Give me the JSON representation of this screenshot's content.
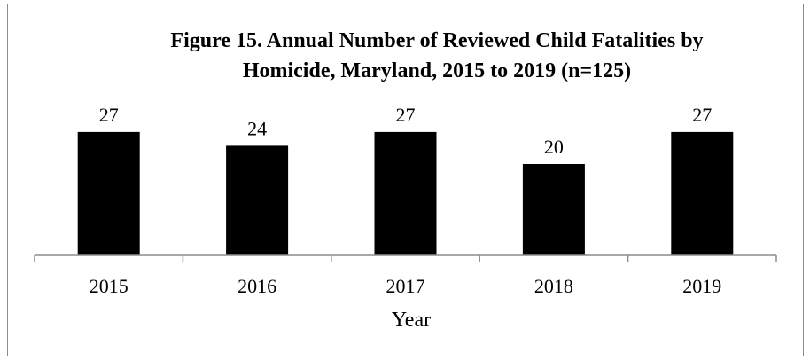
{
  "chart_data": {
    "type": "bar",
    "title_lines": [
      "Figure 15. Annual Number of Reviewed Child Fatalities by",
      "Homicide, Maryland, 2015 to 2019 (n=125)"
    ],
    "categories": [
      "2015",
      "2016",
      "2017",
      "2018",
      "2019"
    ],
    "values": [
      27,
      24,
      27,
      20,
      27
    ],
    "data_labels": [
      "27",
      "24",
      "27",
      "20",
      "27"
    ],
    "xlabel": "Year",
    "ylabel": "",
    "ylim": [
      0,
      30
    ],
    "bar_color": "#000000",
    "grid": false,
    "legend": "none"
  }
}
